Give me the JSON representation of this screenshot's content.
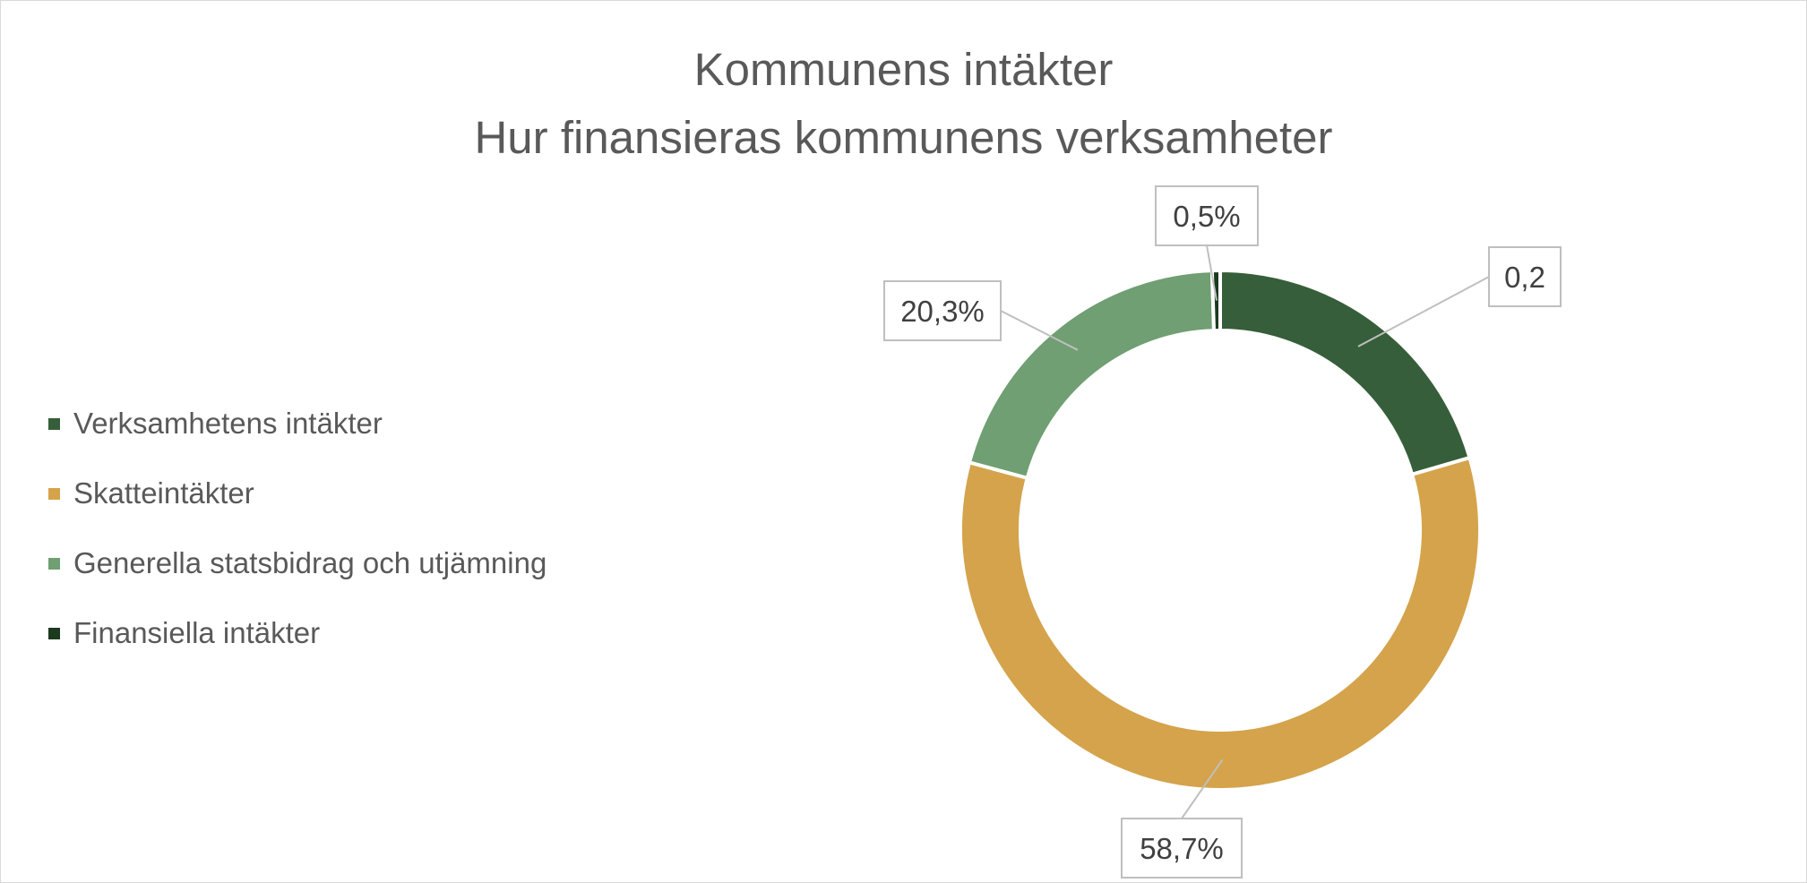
{
  "chart_data": {
    "type": "pie",
    "title": "Kommunens intäkter",
    "subtitle": "Hur finansieras kommunens verksamheter",
    "slices": [
      {
        "name": "Verksamhetens intäkter",
        "value": 20.5,
        "label": "0,2",
        "color": "#375e3a"
      },
      {
        "name": "Skatteintäkter",
        "value": 58.7,
        "label": "58,7%",
        "color": "#d4a34b"
      },
      {
        "name": "Generella statsbidrag och utjämning",
        "value": 20.3,
        "label": "20,3%",
        "color": "#6f9f72"
      },
      {
        "name": "Finansiella intäkter",
        "value": 0.5,
        "label": "0,5%",
        "color": "#1c3a1f"
      }
    ],
    "legend_position": "left",
    "style": "doughnut"
  }
}
